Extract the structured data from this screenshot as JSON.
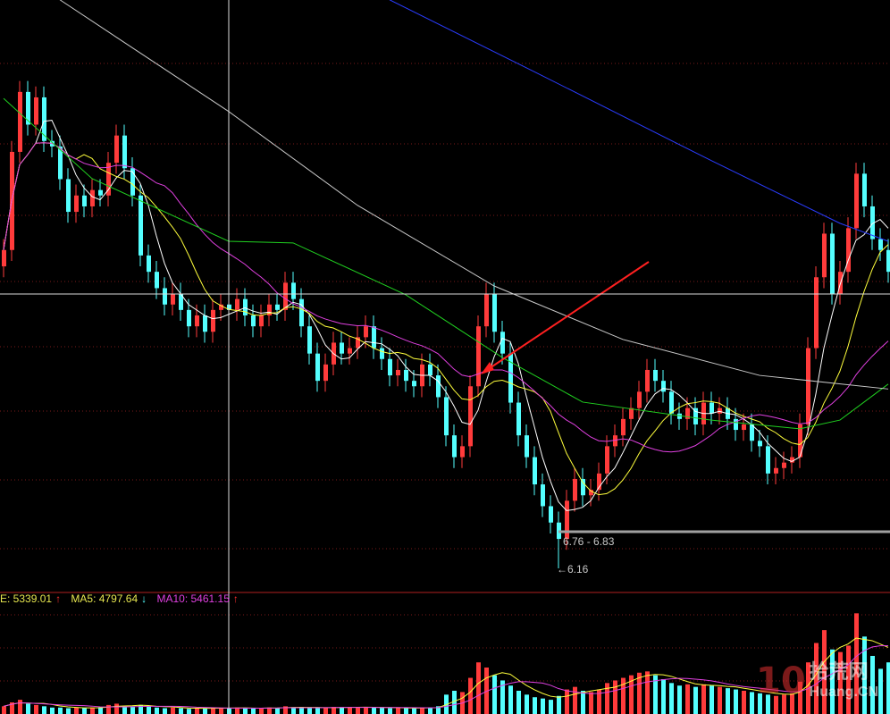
{
  "chart_data": {
    "type": "candlestick",
    "colors": {
      "up": "#ff3b3b",
      "down": "#54ffff",
      "ma5": "#ffffff",
      "ma10": "#ffff3c",
      "ma20": "#e040e0",
      "ma60": "#20d020",
      "ma120": "#c8c8c8",
      "ma250": "#2a3cff",
      "grid": "#7a1a1a",
      "crosshair": "#dcdcdc",
      "arrow": "#ff2020"
    },
    "closes": [
      12.0,
      13.8,
      14.9,
      14.3,
      14.8,
      14.0,
      13.9,
      13.3,
      12.7,
      13.0,
      12.8,
      13.1,
      13.0,
      13.6,
      14.1,
      13.5,
      13.0,
      11.9,
      11.6,
      11.3,
      11.0,
      11.2,
      10.9,
      10.6,
      10.8,
      10.5,
      10.9,
      11.0,
      10.9,
      11.1,
      10.8,
      10.6,
      10.8,
      11.0,
      10.9,
      11.4,
      11.1,
      10.6,
      10.1,
      9.6,
      9.9,
      10.3,
      10.1,
      10.2,
      10.4,
      10.6,
      10.2,
      10.0,
      9.7,
      9.8,
      9.6,
      9.5,
      9.9,
      9.7,
      9.3,
      8.6,
      8.2,
      8.4,
      9.5,
      10.6,
      11.2,
      10.5,
      10.1,
      9.2,
      8.6,
      8.2,
      7.7,
      7.3,
      7.0,
      6.7,
      7.4,
      7.8,
      7.5,
      7.6,
      7.9,
      8.4,
      8.6,
      8.9,
      9.1,
      9.4,
      9.8,
      9.6,
      9.4,
      9.0,
      8.9,
      9.1,
      8.8,
      9.2,
      9.0,
      9.1,
      8.9,
      8.7,
      8.8,
      8.5,
      8.4,
      7.9,
      8.0,
      8.1,
      8.2,
      8.8,
      10.2,
      11.5,
      12.3,
      11.2,
      11.6,
      12.4,
      13.4,
      12.8,
      12.2,
      12.0,
      11.6
    ],
    "volumes": [
      600,
      900,
      1100,
      800,
      700,
      600,
      500,
      500,
      450,
      500,
      450,
      500,
      520,
      700,
      800,
      600,
      600,
      700,
      600,
      500,
      450,
      500,
      450,
      400,
      450,
      420,
      500,
      480,
      450,
      500,
      450,
      420,
      450,
      500,
      480,
      600,
      520,
      500,
      450,
      480,
      500,
      550,
      520,
      500,
      520,
      550,
      500,
      480,
      450,
      480,
      450,
      450,
      500,
      480,
      600,
      1500,
      1800,
      1700,
      2800,
      4000,
      3600,
      3000,
      2600,
      2200,
      1800,
      1500,
      1300,
      1200,
      1100,
      1400,
      1900,
      2100,
      1800,
      1700,
      1900,
      2400,
      2600,
      2800,
      3000,
      3200,
      3300,
      3000,
      2700,
      2400,
      2200,
      2300,
      2100,
      2300,
      2200,
      2100,
      2000,
      1900,
      1800,
      1700,
      1600,
      1500,
      1400,
      1500,
      1600,
      2500,
      4000,
      5500,
      6500,
      5000,
      4800,
      5300,
      7800,
      6000,
      4500,
      3500,
      4000
    ],
    "ma60": [
      [
        0,
        14.78
      ],
      [
        11,
        13.31
      ],
      [
        28,
        12.16
      ],
      [
        36,
        12.13
      ],
      [
        50,
        11.18
      ],
      [
        62,
        10.03
      ],
      [
        72,
        9.21
      ],
      [
        88,
        8.88
      ],
      [
        99,
        8.72
      ],
      [
        104,
        8.88
      ],
      [
        110,
        9.54
      ]
    ],
    "ma120": [
      [
        7,
        16.59
      ],
      [
        28,
        14.54
      ],
      [
        44,
        12.82
      ],
      [
        61,
        11.34
      ],
      [
        77,
        10.36
      ],
      [
        94,
        9.7
      ],
      [
        110,
        9.45
      ]
    ],
    "ma250": [
      [
        48,
        16.59
      ],
      [
        66,
        15.27
      ],
      [
        88,
        13.64
      ],
      [
        104,
        12.49
      ],
      [
        110,
        12.16
      ]
    ],
    "low_point": {
      "index": 69,
      "value": 6.16
    },
    "range_label": "6.76 - 6.83",
    "low_label": "←6.16",
    "volume_legend": [
      {
        "label": "E: 5339.01",
        "arrow": "↑",
        "color": "#e8e850",
        "arrow_color": "#ff3030"
      },
      {
        "label": "MA5: 4797.64",
        "arrow": "↓",
        "color": "#e8e850",
        "arrow_color": "#54ffff"
      },
      {
        "label": "MA10: 5461.15",
        "arrow": "↑",
        "color": "#e040e0",
        "arrow_color": "#ff3030"
      }
    ]
  },
  "watermark": {
    "number": "10",
    "name": "拾荒网",
    "domain": "Huang.CN"
  }
}
